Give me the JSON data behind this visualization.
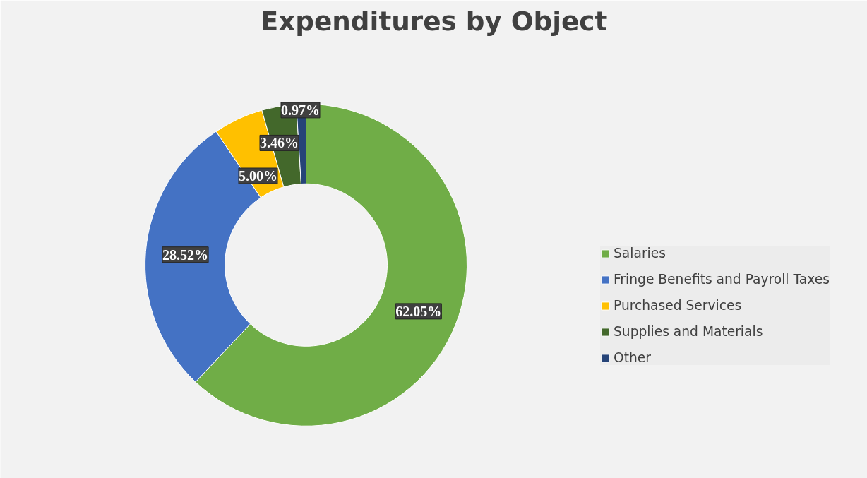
{
  "chart_data": {
    "type": "donut",
    "title": "Expenditures by Object",
    "categories": [
      "Salaries",
      "Fringe Benefits and Payroll Taxes",
      "Purchased Services",
      "Supplies and Materials",
      "Other"
    ],
    "values": [
      62.05,
      28.52,
      5.0,
      3.46,
      0.97
    ],
    "colors": [
      "#70ad47",
      "#4472c4",
      "#ffc000",
      "#43682b",
      "#264478"
    ],
    "value_labels": [
      "62.05%",
      "28.52%",
      "5.00%",
      "3.46%",
      "0.97%"
    ],
    "legend": "right"
  }
}
